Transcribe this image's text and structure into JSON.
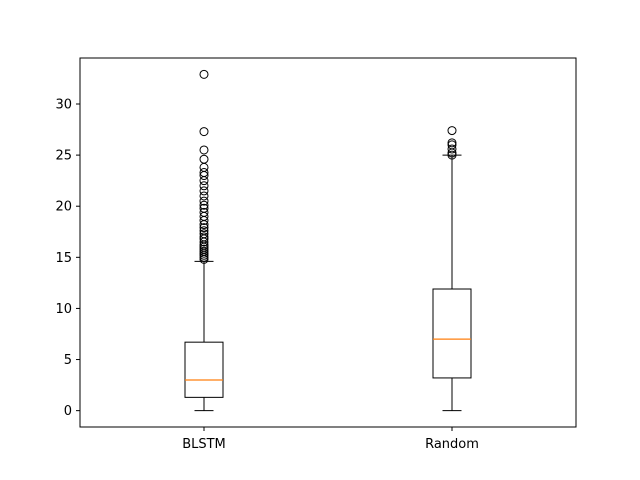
{
  "chart_data": {
    "type": "box",
    "title": "",
    "xlabel": "",
    "ylabel": "",
    "ylim": [
      -1.6,
      34.5
    ],
    "yticks": [
      0,
      5,
      10,
      15,
      20,
      25,
      30
    ],
    "grid": false,
    "legend": "none",
    "categories": [
      "BLSTM",
      "Random"
    ],
    "boxes": [
      {
        "label": "BLSTM",
        "whisker_low": 0,
        "q1": 1.3,
        "median": 3.0,
        "q3": 6.7,
        "whisker_high": 14.6,
        "outliers": [
          14.8,
          15.0,
          15.2,
          15.4,
          15.6,
          15.8,
          16.0,
          16.2,
          16.5,
          16.8,
          17.0,
          17.3,
          17.6,
          17.9,
          18.2,
          18.6,
          19.0,
          19.4,
          19.8,
          20.1,
          20.5,
          21.0,
          21.5,
          22.0,
          22.5,
          23.0,
          23.3,
          23.8,
          24.6,
          25.5,
          27.3,
          32.9
        ]
      },
      {
        "label": "Random",
        "whisker_low": 0,
        "q1": 3.2,
        "median": 7.0,
        "q3": 11.9,
        "whisker_high": 25.0,
        "outliers": [
          25.0,
          25.2,
          25.6,
          26.0,
          26.2,
          27.4
        ]
      }
    ],
    "colors": {
      "box": "#000000",
      "median": "#ff7f0e",
      "outlier_edge": "#000000"
    }
  }
}
